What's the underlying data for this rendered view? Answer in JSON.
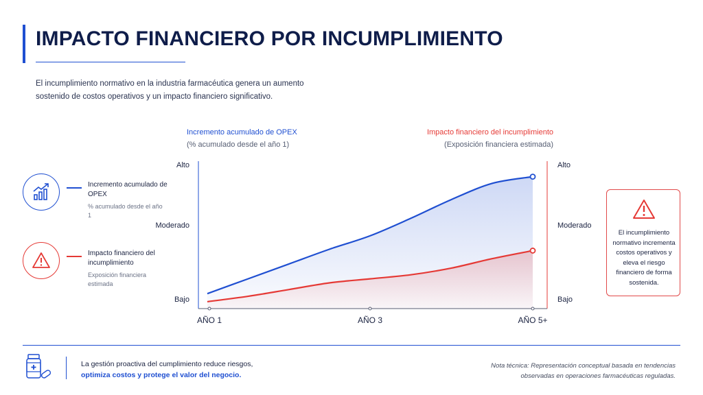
{
  "header": {
    "title": "IMPACTO FINANCIERO POR INCUMPLIMIENTO",
    "subtitle": "El incumplimiento normativo en la industria farmacéutica genera un aumento sostenido de costos operativos y un impacto financiero significativo."
  },
  "colors": {
    "accent": "#1f4fd1",
    "blue_series": "#1f4fd1",
    "red_series": "#e53935",
    "text": "#1a2240"
  },
  "legend": {
    "items": [
      {
        "icon": "chart-growth-icon",
        "title": "Incremento acumulado de OPEX",
        "subtitle": "% acumulado desde el año 1",
        "color": "#1f4fd1"
      },
      {
        "icon": "warning-icon",
        "title": "Impacto financiero del incumplimiento",
        "subtitle": "Exposición financiera estimada",
        "color": "#e53935"
      }
    ]
  },
  "chart_data": {
    "type": "area",
    "categories": [
      "AÑO 1",
      "AÑO 3",
      "AÑO 5+"
    ],
    "left_axis": {
      "title": "Incremento acumulado de OPEX",
      "subtitle": "(% acumulado desde el año 1)",
      "ticks": [
        "Bajo",
        "Moderado",
        "Alto"
      ]
    },
    "right_axis": {
      "title": "Impacto financiero del incumplimiento",
      "subtitle": "(Exposición financiera estimada)",
      "ticks": [
        "Bajo",
        "Moderado",
        "Alto"
      ]
    },
    "ylim": [
      0,
      1
    ],
    "series": [
      {
        "name": "Incremento acumulado de OPEX",
        "color": "#1f4fd1",
        "x": [
          0,
          0.5,
          1,
          1.5,
          2,
          2.5,
          3,
          3.5,
          4
        ],
        "values": [
          0.04,
          0.15,
          0.26,
          0.37,
          0.47,
          0.6,
          0.74,
          0.86,
          0.91
        ]
      },
      {
        "name": "Impacto financiero del incumplimiento",
        "color": "#e53935",
        "x": [
          0,
          0.5,
          1,
          1.5,
          2,
          2.5,
          3,
          3.5,
          4
        ],
        "values": [
          -0.02,
          0.02,
          0.07,
          0.12,
          0.15,
          0.18,
          0.23,
          0.3,
          0.36
        ]
      }
    ],
    "grid": false
  },
  "warning_box": {
    "icon": "warning-icon",
    "text": "El incumplimiento normativo incrementa costos operativos y eleva el riesgo financiero de forma sostenida."
  },
  "footer": {
    "icon": "medicine-bottle-icon",
    "text_line1": "La gestión proactiva del cumplimiento reduce riesgos,",
    "text_line2": "optimiza costos y protege el valor del negocio.",
    "note": "Nota técnica: Representación conceptual basada en tendencias observadas en operaciones farmacéuticas reguladas."
  }
}
